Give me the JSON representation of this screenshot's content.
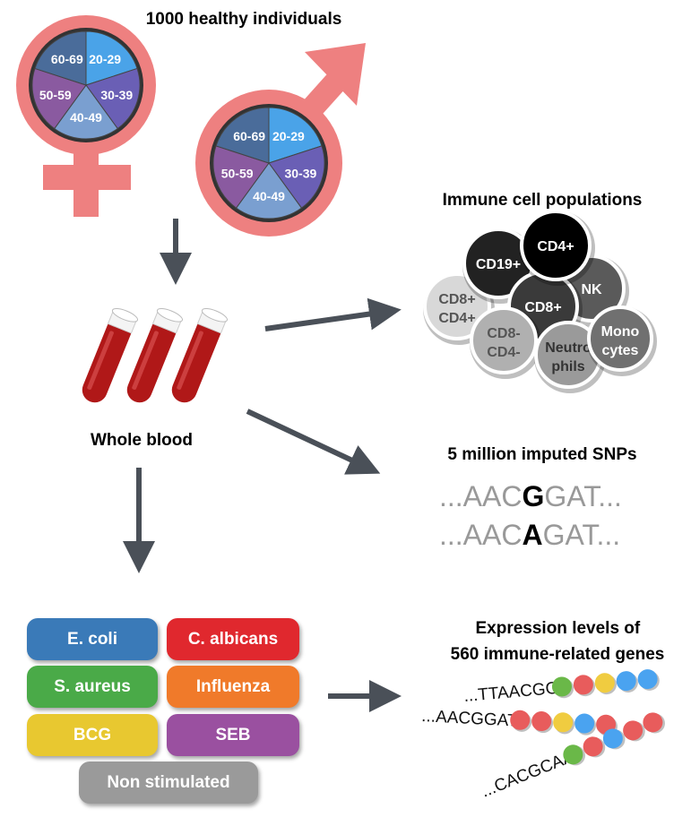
{
  "title_population": "1000 healthy individuals",
  "age_groups": [
    "20-29",
    "30-39",
    "40-49",
    "50-59",
    "60-69"
  ],
  "age_colors": [
    "#4aa3e8",
    "#6a5fb5",
    "#7a9fd0",
    "#8a5aa0",
    "#4a6c9a"
  ],
  "symbol_color": "#ee8080",
  "whole_blood": "Whole blood",
  "immune_title": "Immune cell populations",
  "cells": [
    {
      "label": "CD8+",
      "label2": "CD4+",
      "color": "#d8d8d8",
      "text": "#555"
    },
    {
      "label": "CD19+",
      "label2": "",
      "color": "#222222",
      "text": "#fff"
    },
    {
      "label": "NK",
      "label2": "",
      "color": "#5a5a5a",
      "text": "#fff"
    },
    {
      "label": "CD8+",
      "label2": "",
      "color": "#3a3a3a",
      "text": "#fff"
    },
    {
      "label": "CD4+",
      "label2": "",
      "color": "#000000",
      "text": "#fff"
    },
    {
      "label": "CD8-",
      "label2": "CD4-",
      "color": "#b0b0b0",
      "text": "#555"
    },
    {
      "label": "Neutro",
      "label2": "phils",
      "color": "#9a9a9a",
      "text": "#333"
    },
    {
      "label": "Mono",
      "label2": "cytes",
      "color": "#707070",
      "text": "#fff"
    }
  ],
  "snp_title": "5 million imputed SNPs",
  "snp_rows": [
    {
      "prefix": "...AAC",
      "allele": "G",
      "suffix": "GAT..."
    },
    {
      "prefix": "...AAC",
      "allele": "A",
      "suffix": "GAT..."
    }
  ],
  "expression_title_1": "Expression levels of",
  "expression_title_2": "560 immune-related genes",
  "gene_strands": [
    {
      "seq": "...TTAACGG",
      "beads": [
        "#6ab848",
        "#e85c5c",
        "#f0cc40",
        "#4aa3f0",
        "#4aa3f0"
      ]
    },
    {
      "seq": "...AACGGAT",
      "beads": [
        "#e85c5c",
        "#e85c5c",
        "#f0cc40",
        "#4aa3f0",
        "#e85c5c"
      ]
    },
    {
      "seq": "...CACGCAA",
      "beads": [
        "#6ab848",
        "#e85c5c",
        "#4aa3f0",
        "#e85c5c",
        "#e85c5c"
      ]
    }
  ],
  "stimuli": [
    {
      "label": "E. coli",
      "color": "#3a7ab8"
    },
    {
      "label": "C. albicans",
      "color": "#e0282e"
    },
    {
      "label": "S. aureus",
      "color": "#4aaa48"
    },
    {
      "label": "Influenza",
      "color": "#f07a2a"
    },
    {
      "label": "BCG",
      "color": "#e8c830"
    },
    {
      "label": "SEB",
      "color": "#9a50a0"
    },
    {
      "label": "Non stimulated",
      "color": "#9a9a9a"
    }
  ]
}
